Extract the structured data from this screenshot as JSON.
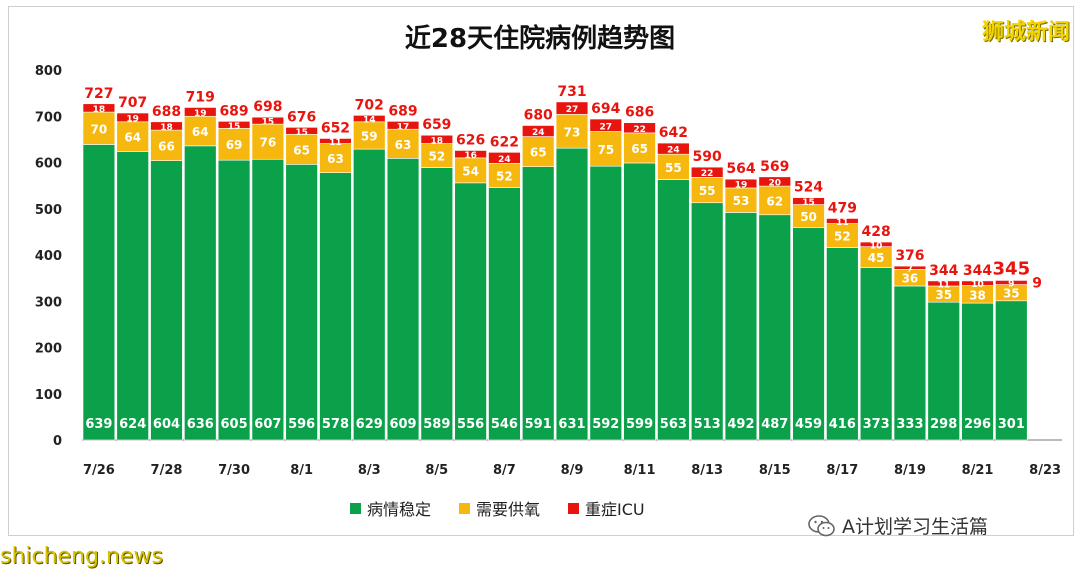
{
  "brand": "狮城新闻",
  "wechat_account": "A计划学习生活篇",
  "watermark": "shicheng.news",
  "chart_data": {
    "type": "bar",
    "stacked": true,
    "title": "近28天住院病例趋势图",
    "categories": [
      "7/26",
      "7/27",
      "7/28",
      "7/29",
      "7/30",
      "7/31",
      "8/1",
      "8/2",
      "8/3",
      "8/4",
      "8/5",
      "8/6",
      "8/7",
      "8/8",
      "8/9",
      "8/10",
      "8/11",
      "8/12",
      "8/13",
      "8/14",
      "8/15",
      "8/16",
      "8/17",
      "8/18",
      "8/19",
      "8/20",
      "8/21",
      "8/22",
      "8/23"
    ],
    "x_tick_labels": [
      "7/26",
      "",
      "7/28",
      "",
      "7/30",
      "",
      "8/1",
      "",
      "8/3",
      "",
      "8/5",
      "",
      "8/7",
      "",
      "8/9",
      "",
      "8/11",
      "",
      "8/13",
      "",
      "8/15",
      "",
      "8/17",
      "",
      "8/19",
      "",
      "8/21",
      "",
      "8/23"
    ],
    "series": [
      {
        "name": "病情稳定",
        "color": "#0aa14a",
        "values": [
          639,
          624,
          604,
          636,
          605,
          607,
          596,
          578,
          629,
          609,
          589,
          556,
          546,
          591,
          631,
          592,
          599,
          563,
          513,
          492,
          487,
          459,
          416,
          373,
          333,
          298,
          296,
          301,
          null
        ]
      },
      {
        "name": "需要供氧",
        "color": "#f6b80f",
        "values": [
          70,
          64,
          66,
          64,
          69,
          76,
          65,
          63,
          59,
          63,
          52,
          54,
          52,
          65,
          73,
          75,
          65,
          55,
          55,
          53,
          62,
          50,
          52,
          45,
          36,
          35,
          38,
          35,
          null
        ]
      },
      {
        "name": "重症ICU",
        "color": "#e8150f",
        "values": [
          18,
          19,
          18,
          19,
          15,
          15,
          15,
          11,
          14,
          17,
          18,
          16,
          24,
          24,
          27,
          27,
          22,
          24,
          22,
          19,
          20,
          15,
          11,
          10,
          7,
          11,
          10,
          9,
          null
        ]
      }
    ],
    "totals": [
      727,
      707,
      688,
      719,
      689,
      698,
      676,
      652,
      702,
      689,
      659,
      626,
      622,
      680,
      731,
      694,
      686,
      642,
      590,
      564,
      569,
      524,
      479,
      428,
      376,
      344,
      344,
      345,
      null
    ],
    "highlight_total_index": 27,
    "ylim": [
      0,
      800
    ],
    "yticks": [
      0,
      100,
      200,
      300,
      400,
      500,
      600,
      700,
      800
    ],
    "grid": false,
    "legend_position": "bottom-center"
  }
}
